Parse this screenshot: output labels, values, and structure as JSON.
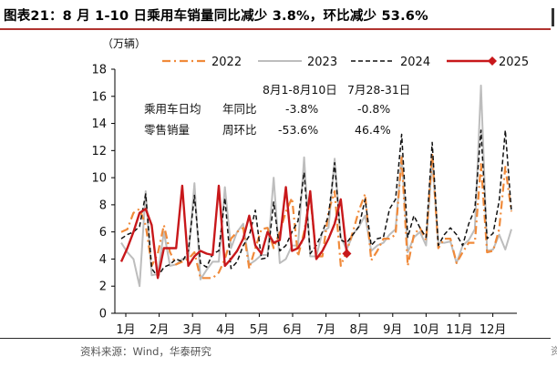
{
  "title": "图表21：8 月 1-10 日乘用车销量同比减少 3.8%，环比减少 53.6%",
  "source": "资料来源：Wind，华泰研究",
  "chart_data": {
    "type": "line",
    "unit_label": "（万辆）",
    "ylim": [
      0,
      18
    ],
    "yticks": [
      "0",
      "2",
      "4",
      "6",
      "8",
      "10",
      "12",
      "14",
      "16",
      "18"
    ],
    "month_labels": [
      "1月",
      "2月",
      "3月",
      "4月",
      "5月",
      "6月",
      "7月",
      "8月",
      "9月",
      "10月",
      "11月",
      "12月"
    ],
    "grid": false,
    "legend_position": "top",
    "series": [
      {
        "name": "2022",
        "color": "#f08a3a",
        "style": "dashdot",
        "values": [
          6.0,
          6.2,
          7.4,
          7.7,
          6.5,
          3.5,
          4.4,
          6.5,
          4.5,
          3.6,
          3.8,
          4.0,
          4.5,
          2.6,
          2.6,
          2.6,
          3.0,
          4.0,
          5.5,
          6.0,
          6.3,
          3.3,
          4.8,
          6.2,
          6.3,
          4.8,
          6.0,
          7.5,
          8.5,
          4.2,
          6.0,
          8.6,
          4.2,
          4.2,
          7.5,
          9.0,
          3.5,
          4.6,
          6.0,
          7.6,
          8.8,
          3.9,
          4.6,
          5.5,
          5.5,
          5.8,
          11.5,
          3.5,
          5.8,
          6.3,
          5.4,
          11.8,
          4.8,
          5.5,
          5.5,
          3.7,
          4.5,
          5.2,
          5.2,
          11.0,
          4.5,
          4.6,
          6.2,
          10.8,
          7.5
        ]
      },
      {
        "name": "2023",
        "color": "#bdbdbd",
        "style": "solid",
        "values": [
          5.2,
          4.5,
          4.0,
          2.0,
          9.0,
          2.8,
          2.9,
          6.0,
          3.5,
          3.6,
          4.0,
          4.1,
          9.6,
          2.5,
          3.2,
          3.8,
          3.8,
          9.3,
          4.8,
          6.0,
          6.6,
          3.6,
          3.9,
          4.3,
          4.3,
          10.0,
          3.7,
          4.0,
          5.0,
          5.0,
          11.5,
          4.2,
          4.2,
          6.0,
          6.3,
          11.4,
          5.6,
          4.7,
          5.8,
          6.4,
          7.2,
          4.6,
          5.0,
          5.2,
          5.8,
          6.2,
          11.6,
          4.5,
          5.6,
          6.0,
          5.0,
          11.3,
          5.2,
          5.2,
          5.3,
          3.7,
          5.0,
          5.4,
          6.2,
          16.8,
          4.6,
          4.7,
          5.8,
          4.7,
          6.2
        ]
      },
      {
        "name": "2024",
        "color": "#111111",
        "style": "dashed",
        "values": [
          5.5,
          5.8,
          6.0,
          6.4,
          8.8,
          3.3,
          2.7,
          3.4,
          3.6,
          4.0,
          3.8,
          4.6,
          8.7,
          3.7,
          3.4,
          4.4,
          4.6,
          8.5,
          3.3,
          3.8,
          5.0,
          5.7,
          7.6,
          4.0,
          4.1,
          8.2,
          4.6,
          5.0,
          6.0,
          6.8,
          10.4,
          4.4,
          5.0,
          6.0,
          7.2,
          11.1,
          5.4,
          5.2,
          5.8,
          6.4,
          8.4,
          5.0,
          5.5,
          5.6,
          7.7,
          8.4,
          13.2,
          5.6,
          7.2,
          6.3,
          5.6,
          12.6,
          5.0,
          5.8,
          6.3,
          5.8,
          5.0,
          6.6,
          7.7,
          13.5,
          5.5,
          5.9,
          8.3,
          13.5,
          7.5
        ]
      },
      {
        "name": "2025",
        "color": "#c8181b",
        "style": "solid",
        "values": [
          3.8,
          4.8,
          6.0,
          7.4,
          7.7,
          6.5,
          2.6,
          4.8,
          4.8,
          4.8,
          9.4,
          3.5,
          4.2,
          4.6,
          4.4,
          4.3,
          9.4,
          3.5,
          4.0,
          4.6,
          5.5,
          7.2,
          5.0,
          4.4,
          6.0,
          5.2,
          5.4,
          9.3,
          4.6,
          4.8,
          5.6,
          9.0,
          4.0,
          4.6,
          5.5,
          6.6,
          8.4,
          4.4
        ]
      }
    ],
    "end_marker": {
      "series": "2025",
      "value": 4.4
    },
    "annotation": {
      "col1_header": "8月1-8月10日",
      "col2_header": "7月28-31日",
      "row1_label": "乘用车日均",
      "row1_metric": "年同比",
      "row1_v1": "-3.8%",
      "row1_v2": "-0.8%",
      "row2_label": "零售销量",
      "row2_metric": "周环比",
      "row2_v1": "-53.6%",
      "row2_v2": "46.4%"
    }
  }
}
